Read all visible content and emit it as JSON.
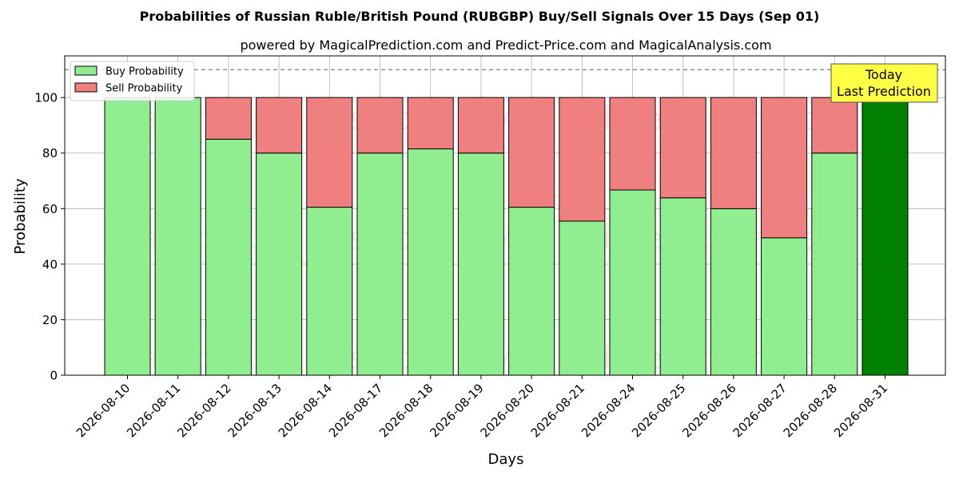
{
  "chart_data": {
    "type": "bar",
    "stacked": true,
    "title": "Probabilities of Russian Ruble/British Pound (RUBGBP) Buy/Sell Signals Over 15 Days (Sep 01)",
    "subtitle": "powered by MagicalPrediction.com and Predict-Price.com and MagicalAnalysis.com",
    "xlabel": "Days",
    "ylabel": "Probability",
    "ylim": [
      0,
      115
    ],
    "yticks": [
      0,
      20,
      40,
      60,
      80,
      100
    ],
    "reference_line": 110,
    "grid": true,
    "legend_position": "top-left",
    "categories": [
      "2026-08-10",
      "2026-08-11",
      "2026-08-12",
      "2026-08-13",
      "2026-08-14",
      "2026-08-17",
      "2026-08-18",
      "2026-08-19",
      "2026-08-20",
      "2026-08-21",
      "2026-08-24",
      "2026-08-25",
      "2026-08-26",
      "2026-08-27",
      "2026-08-28",
      "2026-08-31"
    ],
    "series": [
      {
        "name": "Buy Probability",
        "color": "#90ee90",
        "values": [
          100,
          100,
          85,
          80,
          60.5,
          80,
          81.5,
          80,
          60.5,
          55.5,
          66.7,
          63.9,
          60,
          49.5,
          80,
          100
        ]
      },
      {
        "name": "Sell Probability",
        "color": "#f08080",
        "values": [
          0,
          0,
          15,
          20,
          39.5,
          20,
          18.5,
          20,
          39.5,
          44.5,
          33.3,
          36.1,
          40,
          50.5,
          20,
          0
        ]
      }
    ],
    "highlight": {
      "index": 15,
      "color": "#008000"
    },
    "annotation": {
      "lines": [
        "Today",
        "Last Prediction"
      ],
      "background": "#ffff44"
    },
    "watermarks": [
      "MagicalAnalysis.com",
      "MagicalPrediction.com"
    ]
  }
}
